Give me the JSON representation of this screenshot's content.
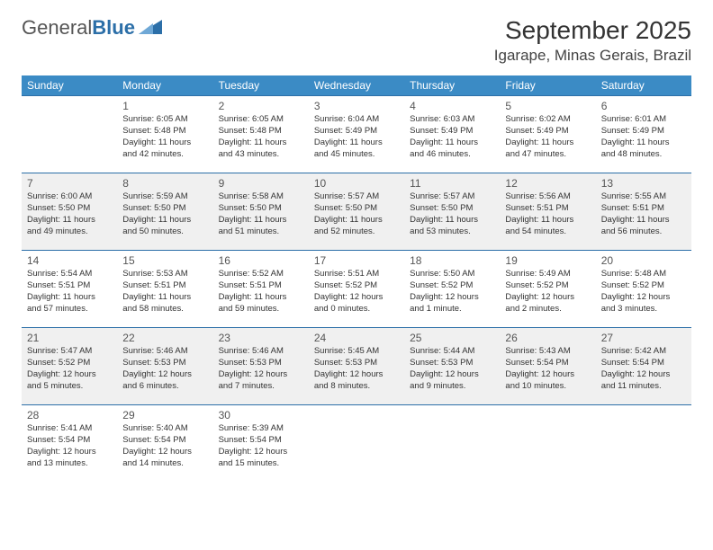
{
  "logo": {
    "text1": "General",
    "text2": "Blue"
  },
  "title": "September 2025",
  "location": "Igarape, Minas Gerais, Brazil",
  "colors": {
    "header_bg": "#3b8bc5",
    "header_fg": "#ffffff",
    "rule": "#2c6fa8",
    "alt_row": "#f0f0f0",
    "logo_accent": "#2c6fa8"
  },
  "day_headers": [
    "Sunday",
    "Monday",
    "Tuesday",
    "Wednesday",
    "Thursday",
    "Friday",
    "Saturday"
  ],
  "weeks": [
    {
      "alt": false,
      "days": [
        null,
        {
          "n": "1",
          "sr": "Sunrise: 6:05 AM",
          "ss": "Sunset: 5:48 PM",
          "dl1": "Daylight: 11 hours",
          "dl2": "and 42 minutes."
        },
        {
          "n": "2",
          "sr": "Sunrise: 6:05 AM",
          "ss": "Sunset: 5:48 PM",
          "dl1": "Daylight: 11 hours",
          "dl2": "and 43 minutes."
        },
        {
          "n": "3",
          "sr": "Sunrise: 6:04 AM",
          "ss": "Sunset: 5:49 PM",
          "dl1": "Daylight: 11 hours",
          "dl2": "and 45 minutes."
        },
        {
          "n": "4",
          "sr": "Sunrise: 6:03 AM",
          "ss": "Sunset: 5:49 PM",
          "dl1": "Daylight: 11 hours",
          "dl2": "and 46 minutes."
        },
        {
          "n": "5",
          "sr": "Sunrise: 6:02 AM",
          "ss": "Sunset: 5:49 PM",
          "dl1": "Daylight: 11 hours",
          "dl2": "and 47 minutes."
        },
        {
          "n": "6",
          "sr": "Sunrise: 6:01 AM",
          "ss": "Sunset: 5:49 PM",
          "dl1": "Daylight: 11 hours",
          "dl2": "and 48 minutes."
        }
      ]
    },
    {
      "alt": true,
      "days": [
        {
          "n": "7",
          "sr": "Sunrise: 6:00 AM",
          "ss": "Sunset: 5:50 PM",
          "dl1": "Daylight: 11 hours",
          "dl2": "and 49 minutes."
        },
        {
          "n": "8",
          "sr": "Sunrise: 5:59 AM",
          "ss": "Sunset: 5:50 PM",
          "dl1": "Daylight: 11 hours",
          "dl2": "and 50 minutes."
        },
        {
          "n": "9",
          "sr": "Sunrise: 5:58 AM",
          "ss": "Sunset: 5:50 PM",
          "dl1": "Daylight: 11 hours",
          "dl2": "and 51 minutes."
        },
        {
          "n": "10",
          "sr": "Sunrise: 5:57 AM",
          "ss": "Sunset: 5:50 PM",
          "dl1": "Daylight: 11 hours",
          "dl2": "and 52 minutes."
        },
        {
          "n": "11",
          "sr": "Sunrise: 5:57 AM",
          "ss": "Sunset: 5:50 PM",
          "dl1": "Daylight: 11 hours",
          "dl2": "and 53 minutes."
        },
        {
          "n": "12",
          "sr": "Sunrise: 5:56 AM",
          "ss": "Sunset: 5:51 PM",
          "dl1": "Daylight: 11 hours",
          "dl2": "and 54 minutes."
        },
        {
          "n": "13",
          "sr": "Sunrise: 5:55 AM",
          "ss": "Sunset: 5:51 PM",
          "dl1": "Daylight: 11 hours",
          "dl2": "and 56 minutes."
        }
      ]
    },
    {
      "alt": false,
      "days": [
        {
          "n": "14",
          "sr": "Sunrise: 5:54 AM",
          "ss": "Sunset: 5:51 PM",
          "dl1": "Daylight: 11 hours",
          "dl2": "and 57 minutes."
        },
        {
          "n": "15",
          "sr": "Sunrise: 5:53 AM",
          "ss": "Sunset: 5:51 PM",
          "dl1": "Daylight: 11 hours",
          "dl2": "and 58 minutes."
        },
        {
          "n": "16",
          "sr": "Sunrise: 5:52 AM",
          "ss": "Sunset: 5:51 PM",
          "dl1": "Daylight: 11 hours",
          "dl2": "and 59 minutes."
        },
        {
          "n": "17",
          "sr": "Sunrise: 5:51 AM",
          "ss": "Sunset: 5:52 PM",
          "dl1": "Daylight: 12 hours",
          "dl2": "and 0 minutes."
        },
        {
          "n": "18",
          "sr": "Sunrise: 5:50 AM",
          "ss": "Sunset: 5:52 PM",
          "dl1": "Daylight: 12 hours",
          "dl2": "and 1 minute."
        },
        {
          "n": "19",
          "sr": "Sunrise: 5:49 AM",
          "ss": "Sunset: 5:52 PM",
          "dl1": "Daylight: 12 hours",
          "dl2": "and 2 minutes."
        },
        {
          "n": "20",
          "sr": "Sunrise: 5:48 AM",
          "ss": "Sunset: 5:52 PM",
          "dl1": "Daylight: 12 hours",
          "dl2": "and 3 minutes."
        }
      ]
    },
    {
      "alt": true,
      "days": [
        {
          "n": "21",
          "sr": "Sunrise: 5:47 AM",
          "ss": "Sunset: 5:52 PM",
          "dl1": "Daylight: 12 hours",
          "dl2": "and 5 minutes."
        },
        {
          "n": "22",
          "sr": "Sunrise: 5:46 AM",
          "ss": "Sunset: 5:53 PM",
          "dl1": "Daylight: 12 hours",
          "dl2": "and 6 minutes."
        },
        {
          "n": "23",
          "sr": "Sunrise: 5:46 AM",
          "ss": "Sunset: 5:53 PM",
          "dl1": "Daylight: 12 hours",
          "dl2": "and 7 minutes."
        },
        {
          "n": "24",
          "sr": "Sunrise: 5:45 AM",
          "ss": "Sunset: 5:53 PM",
          "dl1": "Daylight: 12 hours",
          "dl2": "and 8 minutes."
        },
        {
          "n": "25",
          "sr": "Sunrise: 5:44 AM",
          "ss": "Sunset: 5:53 PM",
          "dl1": "Daylight: 12 hours",
          "dl2": "and 9 minutes."
        },
        {
          "n": "26",
          "sr": "Sunrise: 5:43 AM",
          "ss": "Sunset: 5:54 PM",
          "dl1": "Daylight: 12 hours",
          "dl2": "and 10 minutes."
        },
        {
          "n": "27",
          "sr": "Sunrise: 5:42 AM",
          "ss": "Sunset: 5:54 PM",
          "dl1": "Daylight: 12 hours",
          "dl2": "and 11 minutes."
        }
      ]
    },
    {
      "alt": false,
      "days": [
        {
          "n": "28",
          "sr": "Sunrise: 5:41 AM",
          "ss": "Sunset: 5:54 PM",
          "dl1": "Daylight: 12 hours",
          "dl2": "and 13 minutes."
        },
        {
          "n": "29",
          "sr": "Sunrise: 5:40 AM",
          "ss": "Sunset: 5:54 PM",
          "dl1": "Daylight: 12 hours",
          "dl2": "and 14 minutes."
        },
        {
          "n": "30",
          "sr": "Sunrise: 5:39 AM",
          "ss": "Sunset: 5:54 PM",
          "dl1": "Daylight: 12 hours",
          "dl2": "and 15 minutes."
        },
        null,
        null,
        null,
        null
      ]
    }
  ]
}
